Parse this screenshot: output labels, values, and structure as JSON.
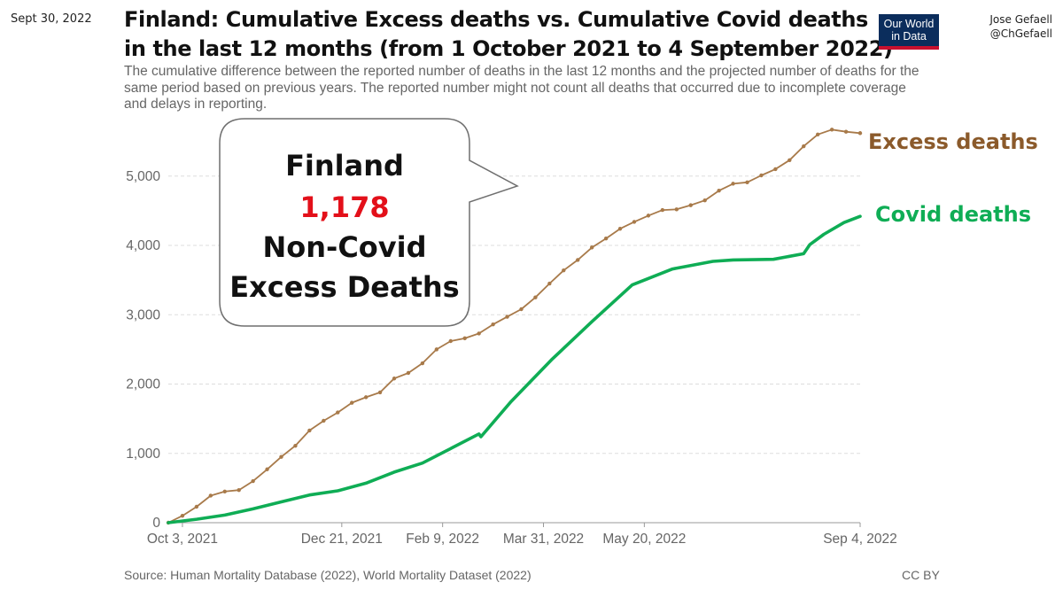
{
  "header": {
    "date": "Sept 30, 2022",
    "title_line1": "Finland: Cumulative Excess deaths vs. Cumulative Covid deaths",
    "title_line2": "in the last 12 months (from 1 October 2021 to 4 September 2022)",
    "subtitle": "The cumulative difference between the reported number of deaths in the last 12 months and the projected number of deaths for the same period based on previous years. The reported number might not count all deaths that occurred due to incomplete coverage and delays in reporting.",
    "logo_line1": "Our World",
    "logo_line2": "in Data",
    "author_name": "Jose Gefaell",
    "author_handle": "@ChGefaell"
  },
  "callout": {
    "country": "Finland",
    "value": "1,178",
    "label_line1": "Non-Covid",
    "label_line2": "Excess Deaths"
  },
  "footer": {
    "source": "Source: Human Mortality Database (2022), World Mortality Dataset (2022)",
    "license": "CC BY"
  },
  "colors": {
    "excess": "#a87a4a",
    "excess_label": "#8b5a2b",
    "covid": "#0fad55",
    "callout_value": "#e3101a",
    "grid": "#dddddd",
    "axis_text": "#666666"
  },
  "chart_data": {
    "type": "line",
    "title": "Finland: Cumulative Excess deaths vs. Cumulative Covid deaths",
    "x_unit": "days since 2021-09-26",
    "xlim": [
      0,
      343
    ],
    "ylim": [
      0,
      5700
    ],
    "yticks": [
      0,
      1000,
      2000,
      3000,
      4000,
      5000
    ],
    "ytick_labels": [
      "0",
      "1,000",
      "2,000",
      "3,000",
      "4,000",
      "5,000"
    ],
    "xticks": [
      {
        "x": 7,
        "label": "Oct 3, 2021"
      },
      {
        "x": 86,
        "label": "Dec 21, 2021"
      },
      {
        "x": 136,
        "label": "Feb 9, 2022"
      },
      {
        "x": 186,
        "label": "Mar 31, 2022"
      },
      {
        "x": 236,
        "label": "May 20, 2022"
      },
      {
        "x": 343,
        "label": "Sep 4, 2022"
      }
    ],
    "series": [
      {
        "name": "Excess deaths",
        "label": "Excess deaths",
        "markers": true,
        "x": [
          0,
          7,
          14,
          21,
          28,
          35,
          42,
          49,
          56,
          63,
          70,
          77,
          84,
          91,
          98,
          105,
          112,
          119,
          126,
          133,
          140,
          147,
          154,
          161,
          168,
          175,
          182,
          189,
          196,
          203,
          210,
          217,
          224,
          231,
          238,
          245,
          252,
          259,
          266,
          273,
          280,
          287,
          294,
          301,
          308,
          315,
          322,
          329,
          336,
          343
        ],
        "y": [
          0,
          100,
          230,
          390,
          450,
          470,
          600,
          770,
          950,
          1110,
          1330,
          1470,
          1590,
          1730,
          1810,
          1880,
          2080,
          2160,
          2300,
          2500,
          2620,
          2660,
          2730,
          2860,
          2970,
          3080,
          3250,
          3450,
          3640,
          3790,
          3970,
          4100,
          4240,
          4340,
          4430,
          4510,
          4520,
          4580,
          4650,
          4790,
          4890,
          4910,
          5010,
          5100,
          5230,
          5430,
          5600,
          5670,
          5640,
          5620
        ]
      },
      {
        "name": "Covid deaths",
        "label": "Covid deaths",
        "markers": false,
        "x": [
          0,
          14,
          28,
          42,
          56,
          70,
          84,
          98,
          112,
          126,
          140,
          154,
          155,
          170,
          190,
          210,
          230,
          250,
          270,
          280,
          300,
          315,
          318,
          325,
          335,
          343
        ],
        "y": [
          0,
          50,
          110,
          200,
          300,
          400,
          460,
          570,
          730,
          860,
          1070,
          1280,
          1240,
          1750,
          2350,
          2900,
          3430,
          3660,
          3770,
          3790,
          3800,
          3880,
          4010,
          4160,
          4330,
          4420
        ]
      }
    ],
    "annotations": [
      {
        "text": "1,178 Non-Covid Excess Deaths"
      }
    ]
  }
}
